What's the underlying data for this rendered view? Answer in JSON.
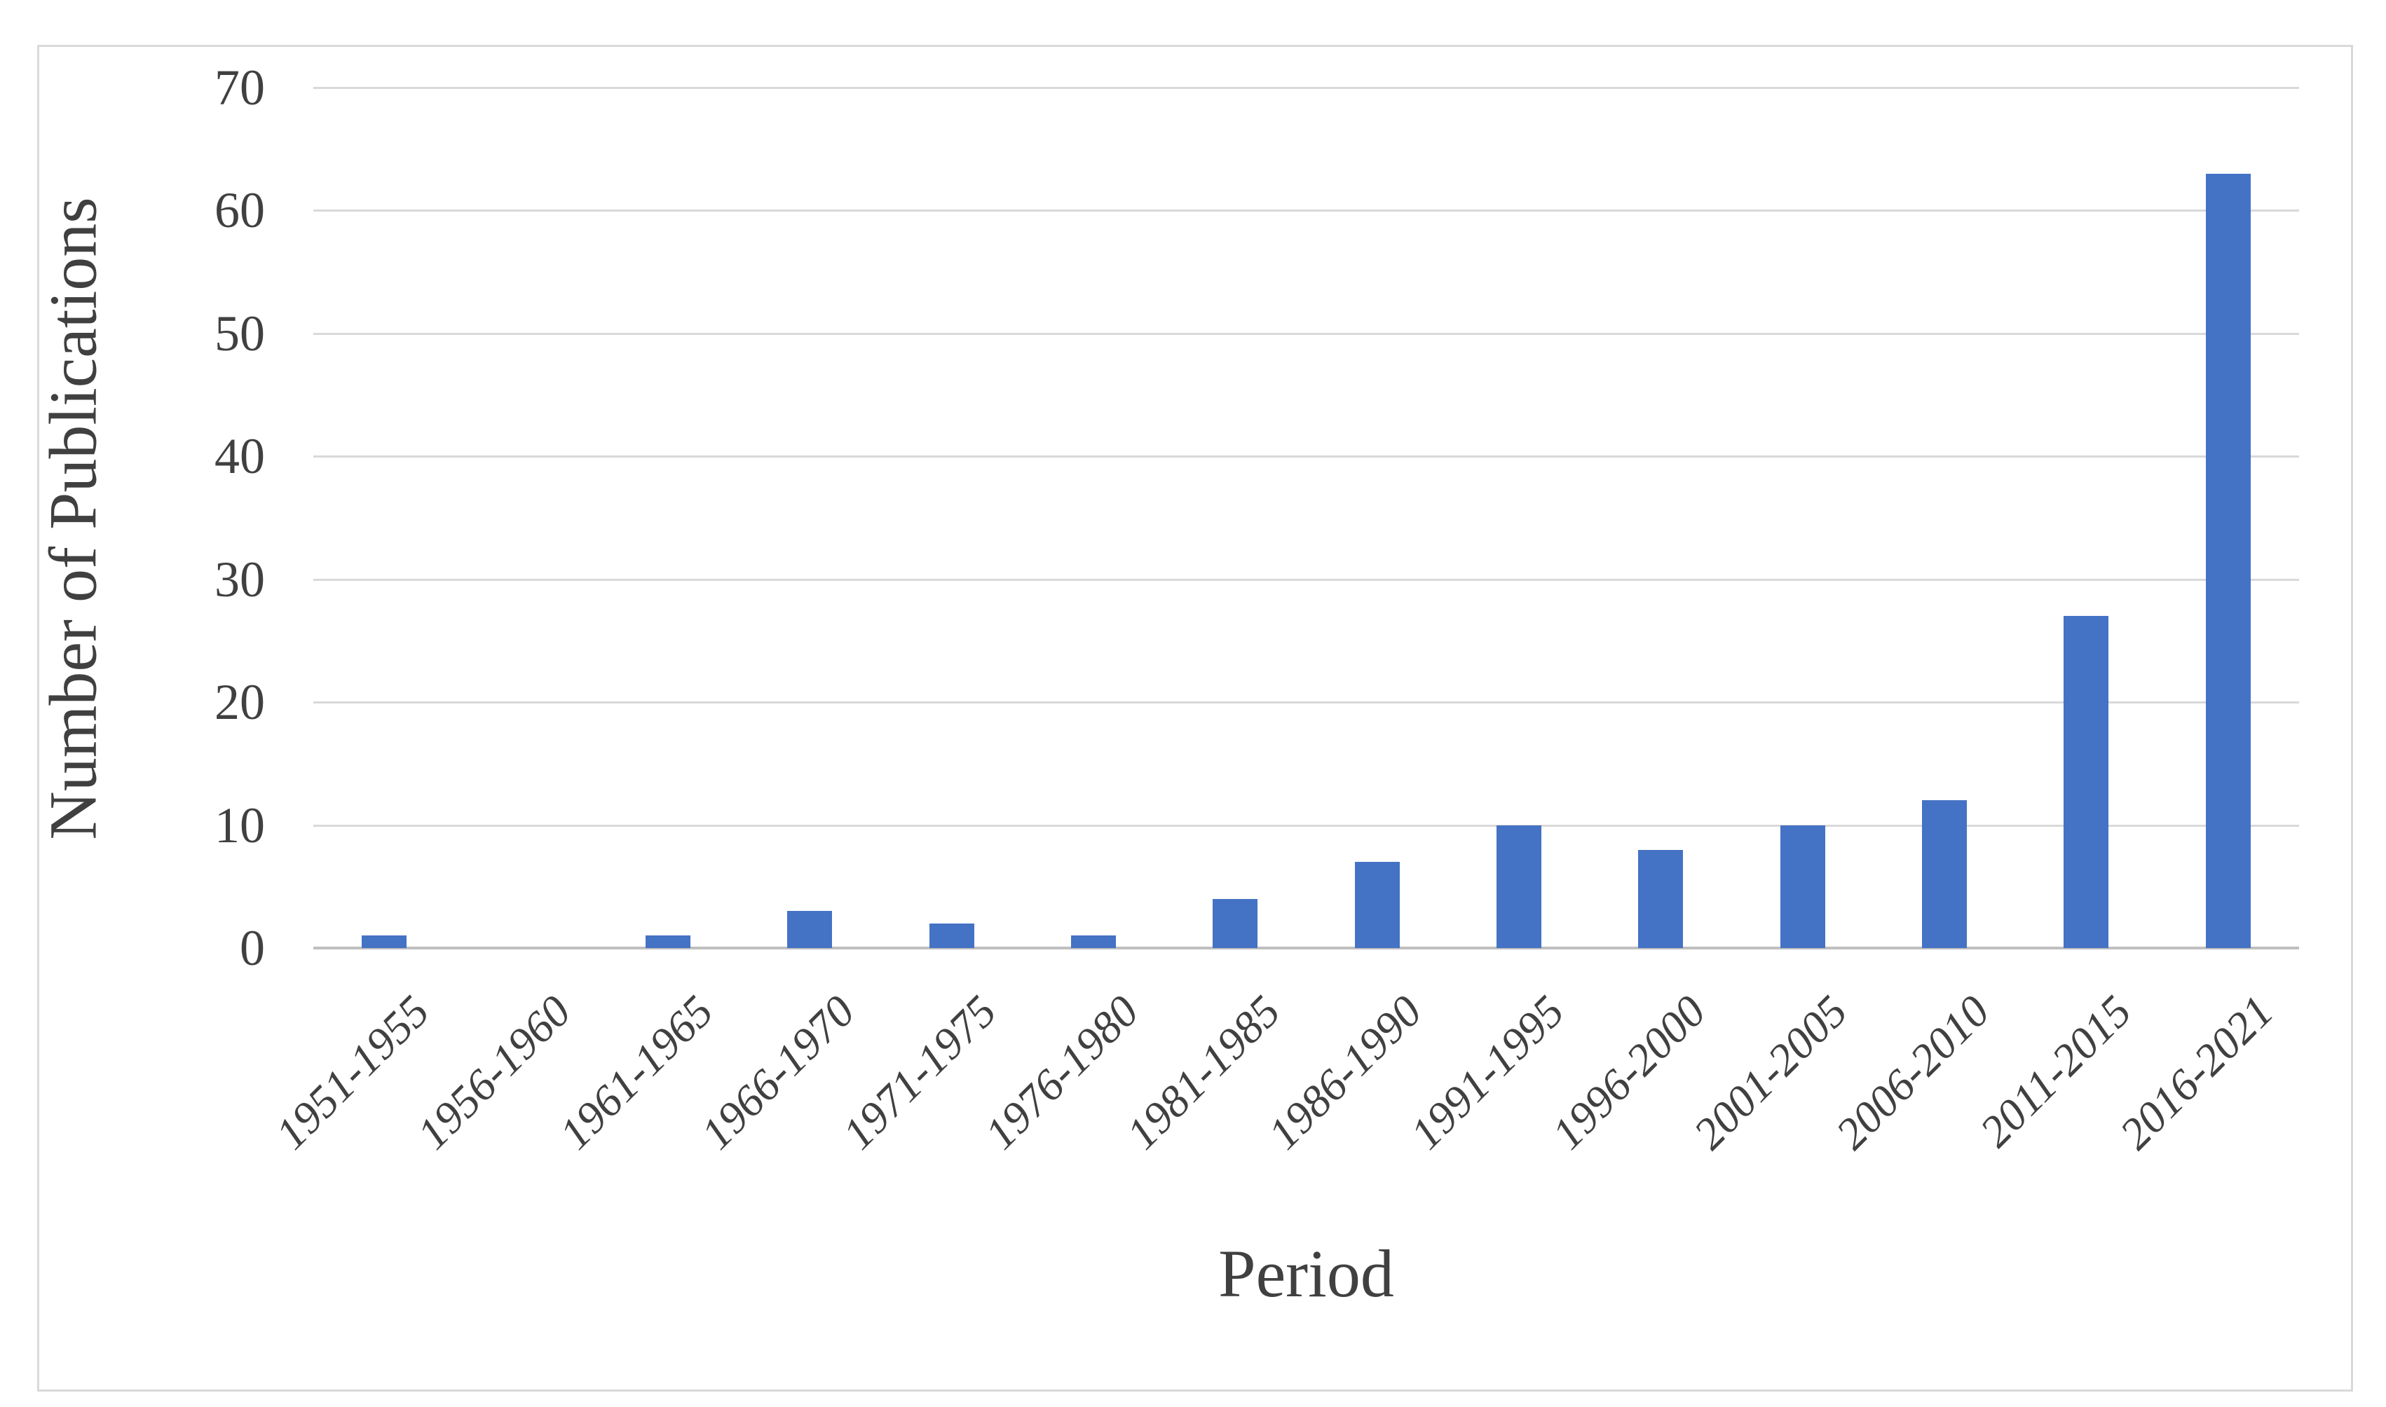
{
  "chart_data": {
    "type": "bar",
    "title": "",
    "xlabel": "Period",
    "ylabel": "Number of Publications",
    "categories": [
      "1951-1955",
      "1956-1960",
      "1961-1965",
      "1966-1970",
      "1971-1975",
      "1976-1980",
      "1981-1985",
      "1986-1990",
      "1991-1995",
      "1996-2000",
      "2001-2005",
      "2006-2010",
      "2011-2015",
      "2016-2021"
    ],
    "values": [
      1,
      0,
      1,
      3,
      2,
      1,
      4,
      7,
      10,
      8,
      10,
      12,
      27,
      63
    ],
    "ylim": [
      0,
      70
    ],
    "ytick_step": 10,
    "grid": true,
    "legend_position": "none",
    "colors": {
      "bar": "#4472C4",
      "gridline": "#D9D9D9",
      "axis_line": "#BFBFBF",
      "text": "#404040",
      "frame_border": "#D9D9D9",
      "background": "#FFFFFF"
    }
  }
}
